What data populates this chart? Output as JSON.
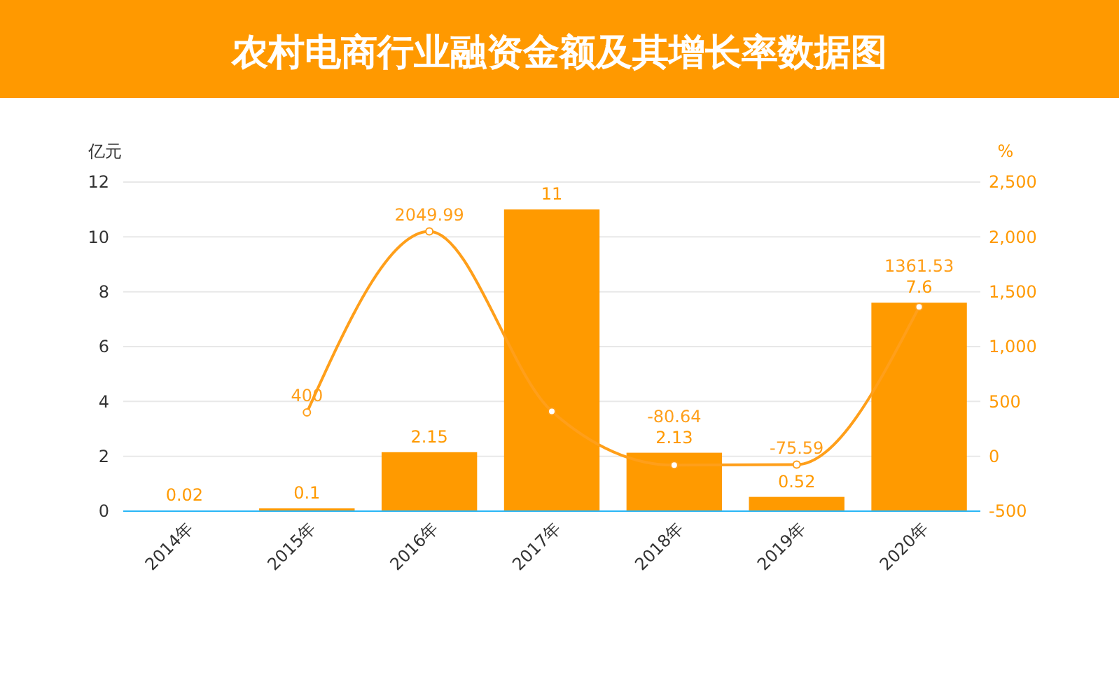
{
  "chart_data": {
    "type": "bar",
    "title": "农村电商行业融资金额及其增长率数据图",
    "ylabel": "亿元",
    "y2label": "%",
    "categories": [
      "2014年",
      "2015年",
      "2016年",
      "2017年",
      "2018年",
      "2019年",
      "2020年"
    ],
    "series": [
      {
        "color": "#ff9a00",
        "values": [
          0.02,
          0.1,
          2.15,
          11,
          2.13,
          0.52,
          7.6
        ],
        "value_labels": [
          "0.02",
          "0.1",
          "2.15",
          "11",
          "2.13",
          "0.52",
          "7.6"
        ]
      },
      {
        "type": "line",
        "axis": "y2",
        "color": "#ff9f1a",
        "values": [
          null,
          400,
          2049.99,
          410,
          -80.64,
          -75.59,
          1361.53
        ],
        "value_labels": [
          null,
          "400",
          "2049.99",
          null,
          "-80.64",
          "-75.59",
          "1361.53"
        ]
      }
    ],
    "ylim": [
      0,
      12
    ],
    "yticks": [
      0,
      2,
      4,
      6,
      8,
      10,
      12
    ],
    "y2lim": [
      -500,
      2500
    ],
    "y2ticks": [
      {
        "value": -500,
        "label": "-500"
      },
      0,
      500,
      {
        "value": 1000,
        "label": "1,000"
      },
      {
        "value": 1500,
        "label": "1,500"
      },
      {
        "value": 2000,
        "label": "2,000"
      },
      {
        "value": 2500,
        "label": "2,500"
      }
    ],
    "grid": "y",
    "marker": "circle",
    "line_style": "solid"
  }
}
